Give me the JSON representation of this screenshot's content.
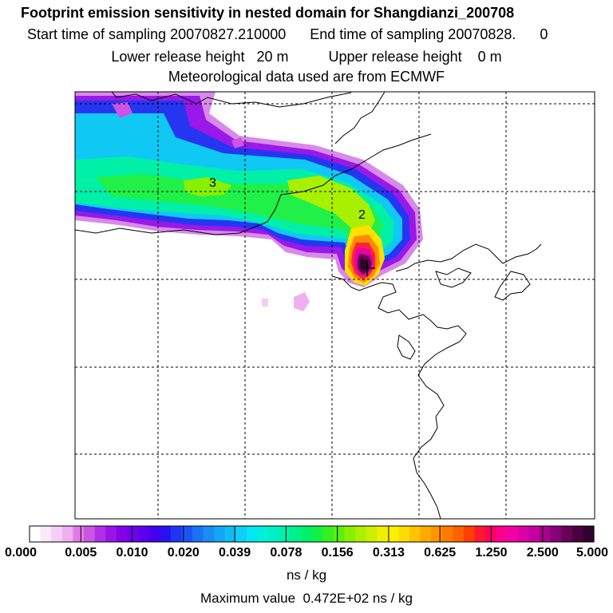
{
  "header": {
    "title": "Footprint emission sensitivity in nested domain for Shangdianzi_200708",
    "sampling_line": "Start time of sampling 20070827.210000      End time of sampling 20070828.      0",
    "release_line": "Lower release height   20 m          Upper release height    0 m",
    "met_line": "Meteorological data used are from ECMWF"
  },
  "map": {
    "contour_labels": [
      "3",
      "2"
    ],
    "release_marker": "plus-marker"
  },
  "colorbar": {
    "tick_labels": [
      "0.000",
      "0.005",
      "0.010",
      "0.020",
      "0.039",
      "0.078",
      "0.156",
      "0.313",
      "0.625",
      "1.250",
      "2.500",
      "5.000"
    ],
    "colors": [
      "#ffffff",
      "#fbe8fb",
      "#f6cdf6",
      "#efb0ef",
      "#e07ae6",
      "#cc55e6",
      "#b030e8",
      "#9a14e6",
      "#8600e8",
      "#7000ea",
      "#5a00ec",
      "#4500ee",
      "#2a10f0",
      "#1f35f2",
      "#1a55f4",
      "#1a72f4",
      "#1a8cf4",
      "#14a6f6",
      "#10bcf6",
      "#0ed0f6",
      "#00e8f2",
      "#00f0dc",
      "#00f0c4",
      "#00f0a8",
      "#00f08a",
      "#00f06a",
      "#10f048",
      "#34f022",
      "#5cf00e",
      "#88f000",
      "#aaf000",
      "#ccf000",
      "#eef000",
      "#fff000",
      "#ffdc00",
      "#ffc400",
      "#ffaa00",
      "#ff9400",
      "#ff7a00",
      "#ff6000",
      "#ff4000",
      "#ff1a30",
      "#ff0060",
      "#ff0090",
      "#f200a8",
      "#dc00a8",
      "#c400a0",
      "#a80090",
      "#880078",
      "#680058",
      "#4a0040",
      "#32002c"
    ],
    "units": "ns / kg",
    "max_value_text": "Maximum value  0.472E+02 ns / kg"
  }
}
